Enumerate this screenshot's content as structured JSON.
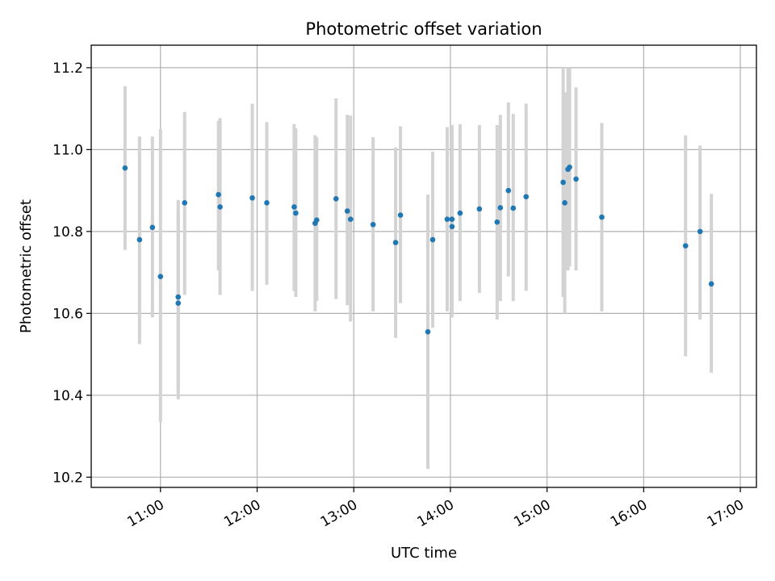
{
  "chart_data": {
    "type": "scatter",
    "title": "Photometric offset variation",
    "xlabel": "UTC time",
    "ylabel": "Photometric offset",
    "x_ticks": [
      "11:00",
      "12:00",
      "13:00",
      "14:00",
      "15:00",
      "16:00",
      "17:00"
    ],
    "y_ticks": [
      "10.2",
      "10.4",
      "10.6",
      "10.8",
      "11.0",
      "11.2"
    ],
    "xlim": [
      "10:17",
      "17:10"
    ],
    "ylim": [
      10.175,
      11.255
    ],
    "grid": true,
    "series": [
      {
        "x": [
          "10:38",
          "10:47",
          "10:55",
          "11:00",
          "11:11",
          "11:11",
          "11:15",
          "11:36",
          "11:37",
          "11:57",
          "12:06",
          "12:23",
          "12:24",
          "12:36",
          "12:37",
          "12:49",
          "12:56",
          "12:58",
          "13:12",
          "13:26",
          "13:29",
          "13:46",
          "13:49",
          "13:58",
          "14:01",
          "14:01",
          "14:06",
          "14:18",
          "14:29",
          "14:31",
          "14:36",
          "14:39",
          "14:47",
          "15:10",
          "15:11",
          "15:13",
          "15:14",
          "15:18",
          "15:34",
          "16:26",
          "16:35",
          "16:42"
        ],
        "y": [
          10.955,
          10.78,
          10.81,
          10.69,
          10.625,
          10.64,
          10.87,
          10.89,
          10.86,
          10.882,
          10.87,
          10.86,
          10.845,
          10.82,
          10.828,
          10.88,
          10.85,
          10.83,
          10.817,
          10.773,
          10.84,
          10.555,
          10.78,
          10.83,
          10.83,
          10.812,
          10.845,
          10.855,
          10.823,
          10.858,
          10.9,
          10.857,
          10.885,
          10.92,
          10.87,
          10.952,
          10.957,
          10.928,
          10.835,
          10.765,
          10.8,
          10.672
        ],
        "y_low": [
          10.755,
          10.525,
          10.59,
          10.335,
          10.39,
          10.405,
          10.645,
          10.705,
          10.645,
          10.655,
          10.67,
          10.655,
          10.64,
          10.605,
          10.63,
          10.635,
          10.62,
          10.58,
          10.605,
          10.54,
          10.625,
          10.22,
          10.565,
          10.605,
          10.6,
          10.59,
          10.63,
          10.65,
          10.585,
          10.63,
          10.69,
          10.63,
          10.655,
          10.64,
          10.6,
          10.705,
          10.715,
          10.705,
          10.605,
          10.495,
          10.585,
          10.455
        ],
        "y_high": [
          11.155,
          11.032,
          11.032,
          11.05,
          10.855,
          10.877,
          11.092,
          11.07,
          11.077,
          11.112,
          11.067,
          11.062,
          11.052,
          11.035,
          11.03,
          11.125,
          11.085,
          11.083,
          11.03,
          11.005,
          11.057,
          10.89,
          10.995,
          11.055,
          11.06,
          11.035,
          11.062,
          11.06,
          11.06,
          11.085,
          11.115,
          11.087,
          11.112,
          11.2,
          11.14,
          11.2,
          11.2,
          11.152,
          11.065,
          11.035,
          11.01,
          10.892
        ],
        "marker_color": "#1f77b4",
        "errorbar_color": "#d3d3d3"
      }
    ]
  }
}
